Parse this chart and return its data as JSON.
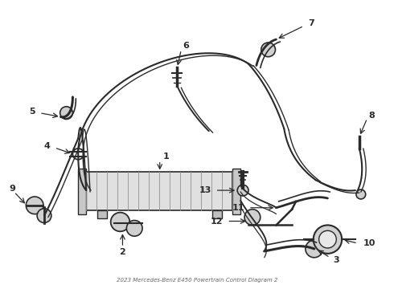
{
  "title": "2023 Mercedes-Benz E450 Powertrain Control Diagram 2",
  "bg_color": "#ffffff",
  "line_color": "#2a2a2a",
  "label_color": "#000000"
}
